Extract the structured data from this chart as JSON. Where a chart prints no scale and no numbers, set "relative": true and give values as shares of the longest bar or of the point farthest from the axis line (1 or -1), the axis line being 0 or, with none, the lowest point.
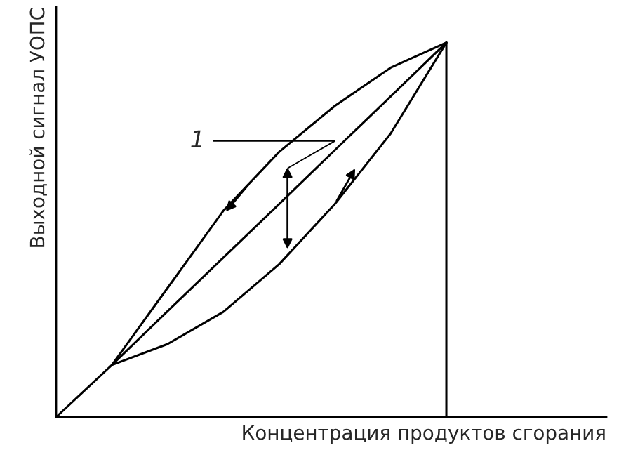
{
  "chart_data": {
    "type": "line",
    "relative": true,
    "xlabel": "Концентрация продуктов сгорания",
    "ylabel": "Выходной сигнал УОПС",
    "categories": [
      null,
      null,
      null,
      null,
      null,
      null,
      null,
      null
    ],
    "series": [
      {
        "color": "#000000",
        "values": [
          0,
          0.139,
          0.283,
          0.426,
          0.569,
          0.713,
          0.856,
          1
        ]
      },
      {
        "color": "#000000",
        "values": [
          null,
          0.139,
          0.345,
          0.551,
          0.708,
          0.831,
          0.933,
          1
        ]
      },
      {
        "color": "#000000",
        "values": [
          null,
          0.139,
          0.195,
          0.281,
          0.408,
          0.569,
          0.757,
          1
        ]
      }
    ],
    "annotations": [
      "1"
    ],
    "line_style": "solid"
  }
}
